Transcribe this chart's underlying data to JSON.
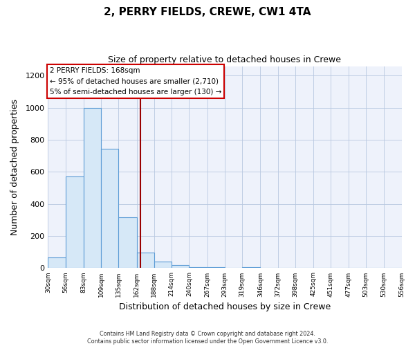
{
  "title": "2, PERRY FIELDS, CREWE, CW1 4TA",
  "subtitle": "Size of property relative to detached houses in Crewe",
  "xlabel": "Distribution of detached houses by size in Crewe",
  "ylabel": "Number of detached properties",
  "bar_color": "#d6e8f7",
  "bar_edge_color": "#5b9bd5",
  "vline_x": 168,
  "vline_color": "#990000",
  "annotation_lines": [
    "2 PERRY FIELDS: 168sqm",
    "← 95% of detached houses are smaller (2,710)",
    "5% of semi-detached houses are larger (130) →"
  ],
  "bin_edges": [
    30,
    56,
    83,
    109,
    135,
    162,
    188,
    214,
    240,
    267,
    293,
    319,
    346,
    372,
    398,
    425,
    451,
    477,
    503,
    530,
    556
  ],
  "bar_heights": [
    65,
    570,
    1000,
    745,
    315,
    95,
    40,
    20,
    5,
    5,
    0,
    5,
    0,
    0,
    0,
    0,
    0,
    0,
    0,
    0
  ],
  "ylim": [
    0,
    1260
  ],
  "yticks": [
    0,
    200,
    400,
    600,
    800,
    1000,
    1200
  ],
  "footer_lines": [
    "Contains HM Land Registry data © Crown copyright and database right 2024.",
    "Contains public sector information licensed under the Open Government Licence v3.0."
  ],
  "annotation_box_facecolor": "#ffffff",
  "annotation_box_edgecolor": "#cc0000",
  "background_color": "#ffffff",
  "plot_bg_color": "#eef2fb"
}
